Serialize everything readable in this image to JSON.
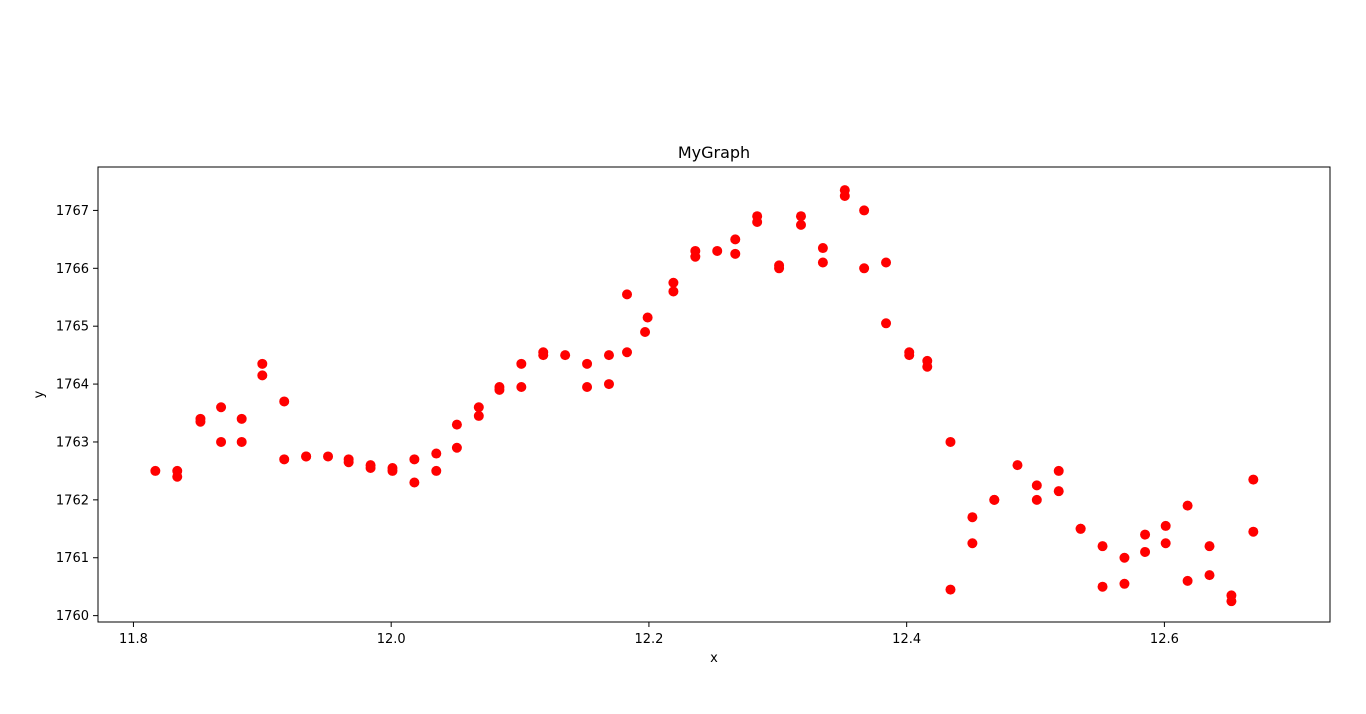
{
  "chart_data": {
    "type": "scatter",
    "title": "MyGraph",
    "xlabel": "x",
    "ylabel": "y",
    "xlim": [
      11.7725,
      12.7285
    ],
    "ylim": [
      1759.89,
      1767.75
    ],
    "grid": false,
    "marker_color": "#ff0000",
    "x_ticks": [
      {
        "value": 11.8,
        "label": "11.8"
      },
      {
        "value": 12.0,
        "label": "12.0"
      },
      {
        "value": 12.2,
        "label": "12.2"
      },
      {
        "value": 12.4,
        "label": "12.4"
      },
      {
        "value": 12.6,
        "label": "12.6"
      }
    ],
    "y_ticks": [
      {
        "value": 1760,
        "label": "1760"
      },
      {
        "value": 1761,
        "label": "1761"
      },
      {
        "value": 1762,
        "label": "1762"
      },
      {
        "value": 1763,
        "label": "1763"
      },
      {
        "value": 1764,
        "label": "1764"
      },
      {
        "value": 1765,
        "label": "1765"
      },
      {
        "value": 1766,
        "label": "1766"
      },
      {
        "value": 1767,
        "label": "1767"
      }
    ],
    "points": [
      [
        11.817,
        1762.5
      ],
      [
        11.834,
        1762.5
      ],
      [
        11.834,
        1762.4
      ],
      [
        11.852,
        1763.4
      ],
      [
        11.852,
        1763.35
      ],
      [
        11.868,
        1763.6
      ],
      [
        11.868,
        1763.0
      ],
      [
        11.884,
        1763.4
      ],
      [
        11.884,
        1763.0
      ],
      [
        11.9,
        1764.35
      ],
      [
        11.9,
        1764.15
      ],
      [
        11.917,
        1763.7
      ],
      [
        11.917,
        1762.7
      ],
      [
        11.934,
        1762.75
      ],
      [
        11.934,
        1762.75
      ],
      [
        11.951,
        1762.75
      ],
      [
        11.967,
        1762.7
      ],
      [
        11.967,
        1762.65
      ],
      [
        11.984,
        1762.6
      ],
      [
        11.984,
        1762.55
      ],
      [
        12.001,
        1762.55
      ],
      [
        12.001,
        1762.5
      ],
      [
        12.018,
        1762.7
      ],
      [
        12.018,
        1762.3
      ],
      [
        12.035,
        1762.8
      ],
      [
        12.035,
        1762.5
      ],
      [
        12.051,
        1763.3
      ],
      [
        12.051,
        1762.9
      ],
      [
        12.068,
        1763.6
      ],
      [
        12.068,
        1763.45
      ],
      [
        12.084,
        1763.95
      ],
      [
        12.084,
        1763.9
      ],
      [
        12.101,
        1764.35
      ],
      [
        12.101,
        1763.95
      ],
      [
        12.118,
        1764.55
      ],
      [
        12.118,
        1764.5
      ],
      [
        12.135,
        1764.5
      ],
      [
        12.152,
        1764.35
      ],
      [
        12.152,
        1763.95
      ],
      [
        12.169,
        1764.5
      ],
      [
        12.169,
        1764.0
      ],
      [
        12.183,
        1765.55
      ],
      [
        12.183,
        1764.55
      ],
      [
        12.199,
        1765.15
      ],
      [
        12.197,
        1764.9
      ],
      [
        12.219,
        1765.75
      ],
      [
        12.219,
        1765.6
      ],
      [
        12.236,
        1766.3
      ],
      [
        12.236,
        1766.2
      ],
      [
        12.253,
        1766.3
      ],
      [
        12.267,
        1766.5
      ],
      [
        12.267,
        1766.25
      ],
      [
        12.284,
        1766.9
      ],
      [
        12.284,
        1766.8
      ],
      [
        12.301,
        1766.05
      ],
      [
        12.301,
        1766.0
      ],
      [
        12.318,
        1766.9
      ],
      [
        12.318,
        1766.75
      ],
      [
        12.335,
        1766.35
      ],
      [
        12.335,
        1766.1
      ],
      [
        12.352,
        1767.35
      ],
      [
        12.352,
        1767.25
      ],
      [
        12.367,
        1767.0
      ],
      [
        12.367,
        1766.0
      ],
      [
        12.384,
        1766.1
      ],
      [
        12.384,
        1765.05
      ],
      [
        12.402,
        1764.55
      ],
      [
        12.402,
        1764.5
      ],
      [
        12.416,
        1764.4
      ],
      [
        12.416,
        1764.3
      ],
      [
        12.434,
        1763.0
      ],
      [
        12.434,
        1760.45
      ],
      [
        12.451,
        1761.7
      ],
      [
        12.451,
        1761.25
      ],
      [
        12.468,
        1762.0
      ],
      [
        12.468,
        1762.0
      ],
      [
        12.486,
        1762.6
      ],
      [
        12.501,
        1762.25
      ],
      [
        12.501,
        1762.0
      ],
      [
        12.518,
        1762.5
      ],
      [
        12.518,
        1762.15
      ],
      [
        12.535,
        1761.5
      ],
      [
        12.535,
        1761.5
      ],
      [
        12.552,
        1761.2
      ],
      [
        12.552,
        1760.5
      ],
      [
        12.569,
        1761.0
      ],
      [
        12.569,
        1760.55
      ],
      [
        12.585,
        1761.4
      ],
      [
        12.585,
        1761.1
      ],
      [
        12.601,
        1761.55
      ],
      [
        12.601,
        1761.25
      ],
      [
        12.618,
        1761.9
      ],
      [
        12.618,
        1760.6
      ],
      [
        12.635,
        1761.2
      ],
      [
        12.635,
        1760.7
      ],
      [
        12.652,
        1760.35
      ],
      [
        12.652,
        1760.25
      ],
      [
        12.669,
        1762.35
      ],
      [
        12.669,
        1761.45
      ]
    ]
  }
}
